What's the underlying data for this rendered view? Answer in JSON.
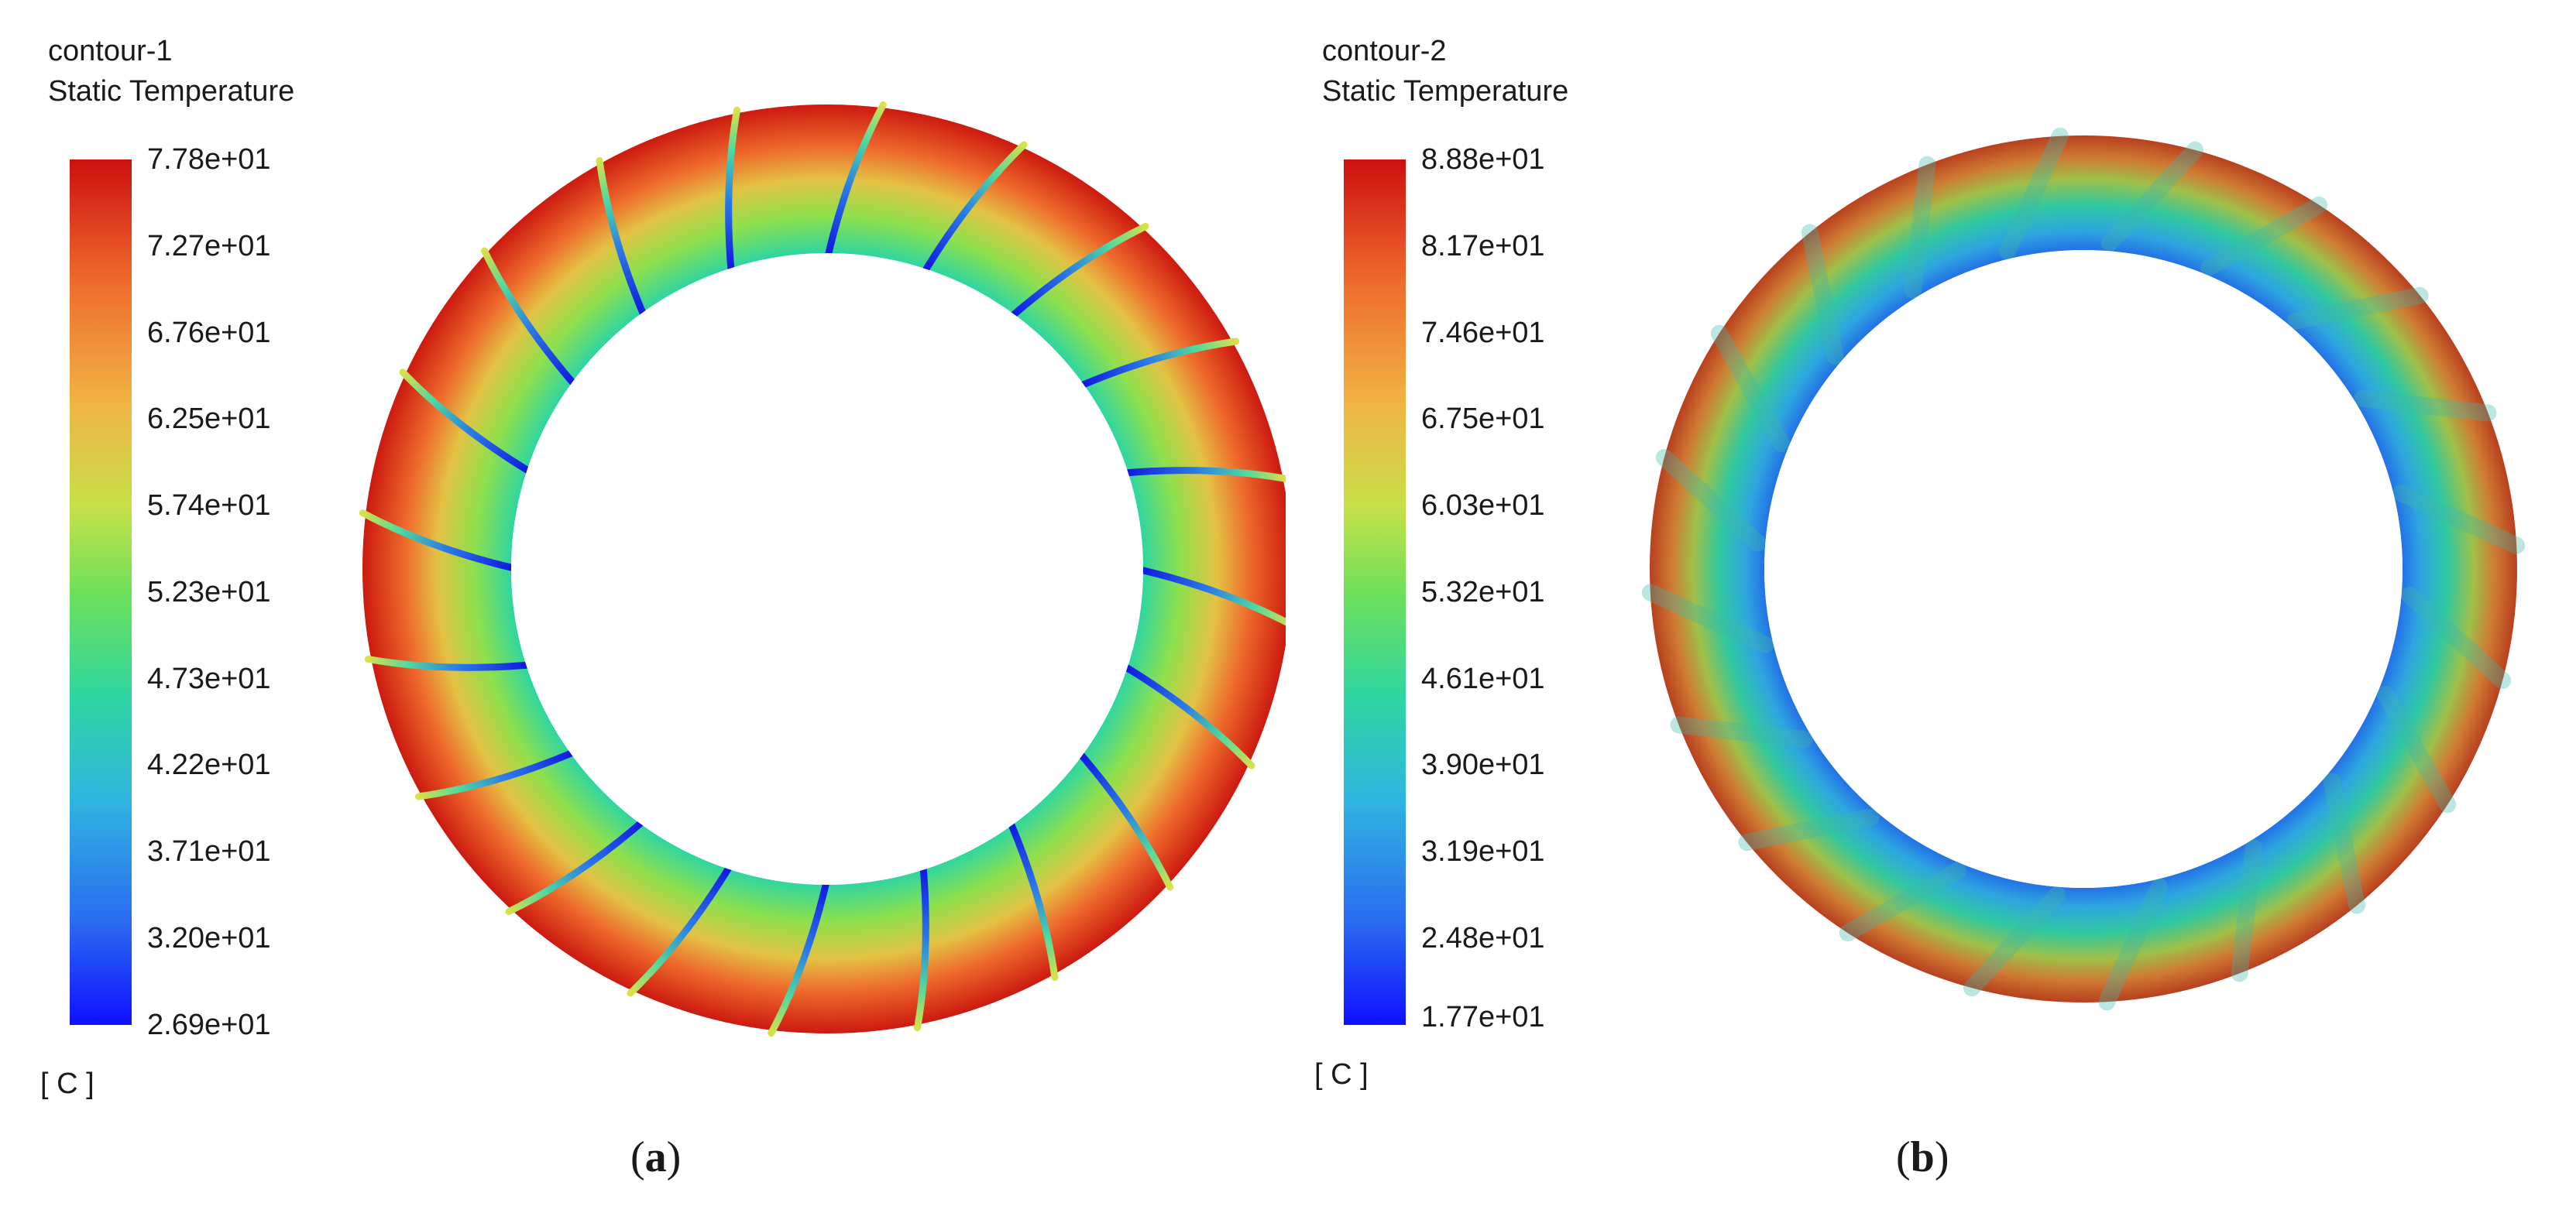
{
  "panels": [
    {
      "contour_name": "contour-1",
      "variable": "Static Temperature",
      "ticks": [
        "7.78e+01",
        "7.27e+01",
        "6.76e+01",
        "6.25e+01",
        "5.74e+01",
        "5.23e+01",
        "4.73e+01",
        "4.22e+01",
        "3.71e+01",
        "3.20e+01",
        "2.69e+01"
      ],
      "unit": "[ C ]",
      "caption_letter": "a",
      "blade_count": 20
    },
    {
      "contour_name": "contour-2",
      "variable": "Static Temperature",
      "ticks": [
        "8.88e+01",
        "8.17e+01",
        "7.46e+01",
        "6.75e+01",
        "6.03e+01",
        "5.32e+01",
        "4.61e+01",
        "3.90e+01",
        "3.19e+01",
        "2.48e+01",
        "1.77e+01"
      ],
      "unit": "[ C ]",
      "caption_letter": "b",
      "lobe_count": 20
    }
  ],
  "colors": {
    "hot": "#cc1010",
    "warm": "#ee6a2c",
    "mid": "#6ee05a",
    "cool": "#2fd6a0",
    "cold": "#1010ff"
  }
}
